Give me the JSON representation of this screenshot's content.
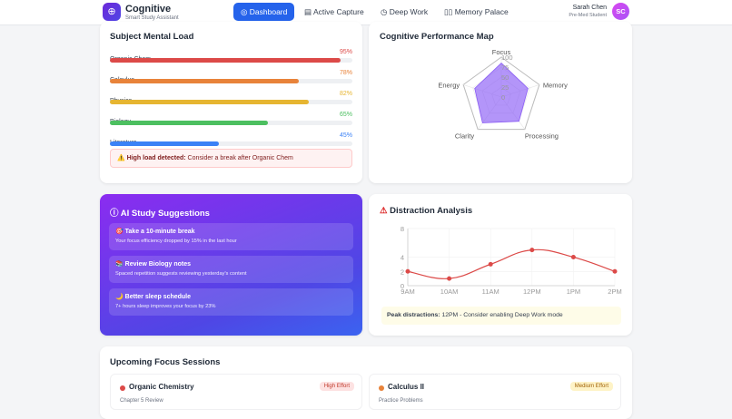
{
  "header": {
    "brand": "Cognitive",
    "tagline": "Smart Study Assistant",
    "logo_icon": "brain-icon",
    "nav": [
      {
        "label": "Dashboard",
        "icon": "dashboard-icon",
        "active": true
      },
      {
        "label": "Active Capture",
        "icon": "document-icon"
      },
      {
        "label": "Deep Work",
        "icon": "timer-icon"
      },
      {
        "label": "Memory Palace",
        "icon": "book-icon"
      }
    ],
    "user": {
      "name": "Sarah Chen",
      "role": "Pre-Med Student",
      "initials": "SC"
    }
  },
  "mental_load": {
    "title": "Subject Mental Load",
    "subjects": [
      {
        "name": "Organic Chem",
        "value": "95%",
        "pct": 95,
        "color": "#dc4a48"
      },
      {
        "name": "Calculus",
        "value": "78%",
        "pct": 78,
        "color": "#e8833a"
      },
      {
        "name": "Physics",
        "value": "82%",
        "pct": 82,
        "color": "#e6b531"
      },
      {
        "name": "Biology",
        "value": "65%",
        "pct": 65,
        "color": "#4cbf60"
      },
      {
        "name": "Literature",
        "value": "45%",
        "pct": 45,
        "color": "#3b82f6"
      }
    ],
    "alert_strong": "⚠️ High load detected:",
    "alert_text": " Consider a break after Organic Chem"
  },
  "performance": {
    "title": "Cognitive Performance Map",
    "chart_data": {
      "type": "radar",
      "axes": [
        "Focus",
        "Memory",
        "Processing",
        "Clarity",
        "Energy"
      ],
      "values": [
        85,
        70,
        75,
        80,
        70
      ],
      "r_ticks": [
        "0",
        "25",
        "50",
        "75",
        "100"
      ],
      "range": [
        0,
        100
      ],
      "color": "#8b5cf6"
    }
  },
  "suggestions": {
    "title": "AI Study Suggestions",
    "items": [
      {
        "title": "🎯 Take a 10-minute break",
        "text": "Your focus efficiency dropped by 15% in the last hour"
      },
      {
        "title": "📚 Review Biology notes",
        "text": "Spaced repetition suggests reviewing yesterday's content"
      },
      {
        "title": "🌙 Better sleep schedule",
        "text": "7+ hours sleep improves your focus by 23%"
      }
    ]
  },
  "distraction": {
    "title": "Distraction Analysis",
    "chart_data": {
      "type": "line",
      "categories": [
        "9AM",
        "10AM",
        "11AM",
        "12PM",
        "1PM",
        "2PM"
      ],
      "values": [
        2,
        1,
        3,
        5,
        4,
        2
      ],
      "y_ticks": [
        "0",
        "2",
        "4",
        "8"
      ],
      "ylim": [
        0,
        8
      ],
      "color": "#dc4a48",
      "grid": true
    },
    "peak_strong": "Peak distractions:",
    "peak_text": " 12PM - Consider enabling Deep Work mode"
  },
  "sessions": {
    "title": "Upcoming Focus Sessions",
    "items": [
      {
        "name": "Organic Chemistry",
        "sub": "Chapter 5 Review",
        "badge": "High Effort",
        "dot": "#dc4a48"
      },
      {
        "name": "Calculus II",
        "sub": "Practice Problems",
        "badge": "Medium Effort",
        "dot": "#e8833a"
      }
    ]
  }
}
